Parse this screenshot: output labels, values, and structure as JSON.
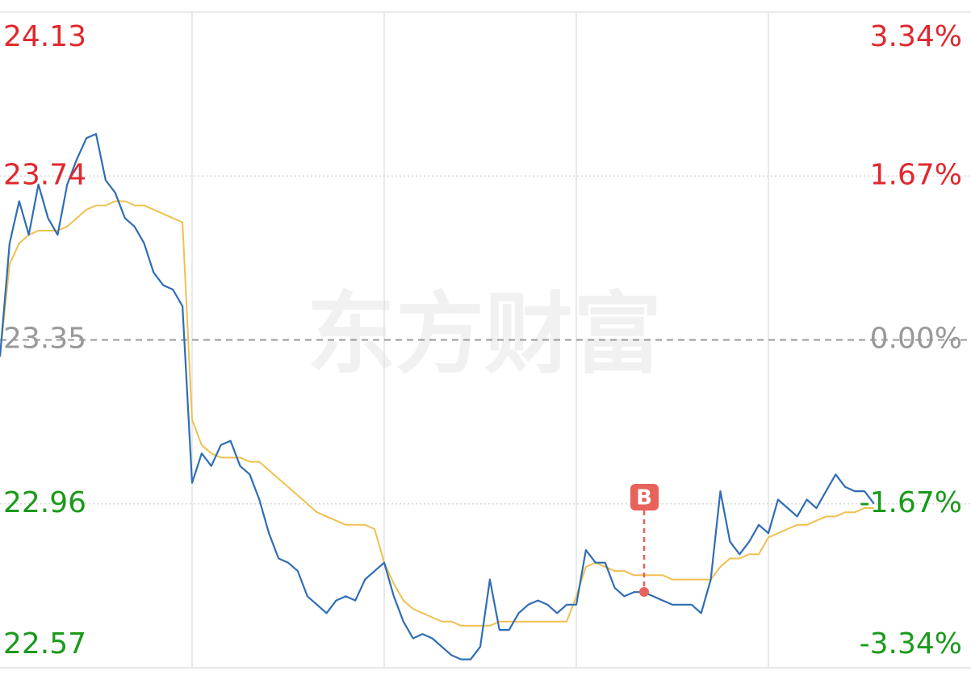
{
  "chart_data": {
    "type": "line",
    "watermark": "东方财富",
    "marker": {
      "label": "B",
      "color": "#e8615a"
    },
    "ylim": [
      22.57,
      24.13
    ],
    "yticks": [
      24.13,
      23.74,
      23.35,
      22.96,
      22.57
    ],
    "y2lim": [
      -3.34,
      3.34
    ],
    "y2ticks": [
      {
        "value": 3.34,
        "label": "3.34%"
      },
      {
        "value": 1.67,
        "label": "1.67%"
      },
      {
        "value": 0,
        "label": "0.00%"
      },
      {
        "value": -1.67,
        "label": "-1.67%"
      },
      {
        "value": -3.34,
        "label": "-3.34%"
      }
    ],
    "up_color": "#e0282e",
    "down_color": "#1a9a1a",
    "flat_color": "#999999",
    "series": [
      {
        "color": "#2f6db5",
        "values": [
          23.31,
          23.58,
          23.68,
          23.6,
          23.72,
          23.64,
          23.6,
          23.72,
          23.78,
          23.83,
          23.84,
          23.73,
          23.7,
          23.64,
          23.62,
          23.58,
          23.51,
          23.48,
          23.47,
          23.43,
          23.01,
          23.08,
          23.05,
          23.1,
          23.11,
          23.05,
          23.03,
          22.97,
          22.89,
          22.83,
          22.82,
          22.8,
          22.74,
          22.72,
          22.7,
          22.73,
          22.74,
          22.73,
          22.78,
          22.8,
          22.82,
          22.74,
          22.68,
          22.64,
          22.65,
          22.64,
          22.62,
          22.6,
          22.59,
          22.59,
          22.62,
          22.78,
          22.66,
          22.66,
          22.7,
          22.72,
          22.73,
          22.72,
          22.7,
          22.72,
          22.72,
          22.85,
          22.82,
          22.82,
          22.76,
          22.74,
          22.75,
          22.75,
          22.74,
          22.73,
          22.72,
          22.72,
          22.72,
          22.7,
          22.78,
          22.99,
          22.87,
          22.84,
          22.87,
          22.91,
          22.89,
          22.97,
          22.95,
          22.93,
          22.97,
          22.95,
          22.99,
          23.03,
          23.0,
          22.99,
          22.99,
          22.96,
          null,
          null,
          null,
          null,
          null,
          null,
          null,
          null
        ]
      },
      {
        "color": "#f0c050",
        "values": [
          23.31,
          23.53,
          23.58,
          23.6,
          23.61,
          23.61,
          23.61,
          23.62,
          23.64,
          23.66,
          23.67,
          23.67,
          23.68,
          23.68,
          23.67,
          23.67,
          23.66,
          23.65,
          23.64,
          23.63,
          23.16,
          23.1,
          23.08,
          23.07,
          23.07,
          23.07,
          23.06,
          23.06,
          23.04,
          23.02,
          23.0,
          22.98,
          22.96,
          22.94,
          22.93,
          22.92,
          22.91,
          22.91,
          22.91,
          22.9,
          22.82,
          22.77,
          22.73,
          22.71,
          22.7,
          22.69,
          22.68,
          22.68,
          22.67,
          22.67,
          22.67,
          22.67,
          22.68,
          22.68,
          22.68,
          22.68,
          22.68,
          22.68,
          22.68,
          22.68,
          22.74,
          22.81,
          22.82,
          22.81,
          22.8,
          22.8,
          22.79,
          22.79,
          22.79,
          22.79,
          22.78,
          22.78,
          22.78,
          22.78,
          22.78,
          22.81,
          22.83,
          22.83,
          22.84,
          22.84,
          22.88,
          22.89,
          22.9,
          22.91,
          22.91,
          22.92,
          22.93,
          22.93,
          22.94,
          22.94,
          22.95,
          22.95,
          null,
          null,
          null,
          null,
          null,
          null,
          null,
          null
        ]
      }
    ]
  }
}
